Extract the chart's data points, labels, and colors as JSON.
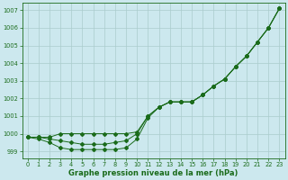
{
  "xlabel": "Graphe pression niveau de la mer (hPa)",
  "bg_color": "#cce8ee",
  "grid_color": "#aacccc",
  "line_color": "#1a6b1a",
  "ylim": [
    998.6,
    1007.4
  ],
  "xlim": [
    -0.5,
    23.5
  ],
  "xticks": [
    0,
    1,
    2,
    3,
    4,
    5,
    6,
    7,
    8,
    9,
    10,
    11,
    12,
    13,
    14,
    15,
    16,
    17,
    18,
    19,
    20,
    21,
    22,
    23
  ],
  "yticks": [
    999,
    1000,
    1001,
    1002,
    1003,
    1004,
    1005,
    1006,
    1007
  ],
  "line_top": [
    999.8,
    999.8,
    999.8,
    1000.0,
    1000.0,
    1000.0,
    1000.0,
    1000.0,
    1000.0,
    1000.0,
    1000.1,
    1001.0,
    1001.5,
    1001.8,
    1001.8,
    1001.8,
    1002.2,
    1002.7,
    1003.1,
    1003.8,
    1004.4,
    1005.2,
    1006.0,
    1007.1
  ],
  "line_mid": [
    999.8,
    999.8,
    999.7,
    999.6,
    999.5,
    999.4,
    999.4,
    999.4,
    999.5,
    999.6,
    1000.0,
    1001.0,
    1001.5,
    1001.8,
    1001.8,
    1001.8,
    1002.2,
    1002.7,
    1003.1,
    1003.8,
    1004.4,
    1005.2,
    1006.0,
    1007.1
  ],
  "line_bot": [
    999.8,
    999.7,
    999.5,
    999.2,
    999.1,
    999.1,
    999.1,
    999.1,
    999.1,
    999.2,
    999.7,
    1000.9,
    1001.5,
    1001.8,
    1001.8,
    1001.8,
    1002.2,
    1002.7,
    1003.1,
    1003.8,
    1004.4,
    1005.2,
    1006.0,
    1007.1
  ]
}
